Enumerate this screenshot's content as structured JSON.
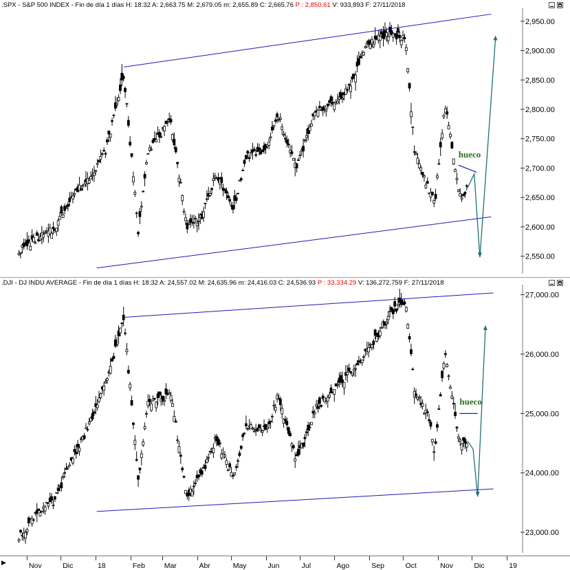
{
  "panels": [
    {
      "id": "spx",
      "header": {
        "symbol": ".SPX - S&P 500 INDEX - Fin de día 1 días",
        "h": "H: 18:32",
        "a": "A: 2,663.75",
        "m": "M: 2,679.05",
        "mn": "m: 2,655.89",
        "c": "C: 2,665.76",
        "p": "P : 2,850.61",
        "v": "V: 933,893",
        "f": "F: 27/11/2018"
      },
      "annotation": "hueco",
      "colors": {
        "channel": "#1a1ab4",
        "projection": "#1f6f6f",
        "gap": "#1a1ab4",
        "label": "#2a6e1a",
        "candle": "#000000"
      }
    },
    {
      "id": "dji",
      "header": {
        "symbol": ".DJI - DJ INDU AVERAGE - Fin de día 1 días",
        "h": "H: 18:32",
        "a": "A: 24,557.02",
        "m": "M: 24,635.96",
        "mn": "m: 24,416.03",
        "c": "C: 24,536.93",
        "p": "P : 33,334.29",
        "v": "V: 136,272,759",
        "f": "F: 27/11/2018"
      },
      "annotation": "hueco",
      "colors": {
        "channel": "#1a1ab4",
        "projection": "#1f6f6f",
        "gap": "#1a1ab4",
        "label": "#2a6e1a",
        "candle": "#000000"
      }
    }
  ],
  "x_axis": {
    "labels": [
      "Nov",
      "Dic",
      "18",
      "Feb",
      "Mar",
      "Abr",
      "May",
      "Jun",
      "Jul",
      "Ago",
      "Sep",
      "Oct",
      "Nov",
      "Dic",
      "19"
    ]
  },
  "chart_data": [
    {
      "type": "line",
      "title": ".SPX - S&P 500 INDEX",
      "y_ticks": [
        "2,950.00",
        "2,900.00",
        "2,850.00",
        "2,800.00",
        "2,750.00",
        "2,700.00",
        "2,650.00",
        "2,600.00",
        "2,550.00"
      ],
      "ylim": [
        2525,
        2965
      ],
      "x": [
        "2017-10-25",
        "2017-11-10",
        "2017-11-25",
        "2017-12-10",
        "2017-12-25",
        "2018-01-10",
        "2018-01-26",
        "2018-02-08",
        "2018-02-16",
        "2018-03-09",
        "2018-03-23",
        "2018-04-06",
        "2018-04-18",
        "2018-05-03",
        "2018-05-15",
        "2018-06-01",
        "2018-06-12",
        "2018-06-28",
        "2018-07-16",
        "2018-08-01",
        "2018-08-15",
        "2018-08-29",
        "2018-09-20",
        "2018-10-03",
        "2018-10-11",
        "2018-10-24",
        "2018-10-29",
        "2018-11-07",
        "2018-11-20",
        "2018-11-27"
      ],
      "series": [
        {
          "values": [
            2560,
            2580,
            2595,
            2650,
            2680,
            2730,
            2860,
            2590,
            2730,
            2780,
            2600,
            2620,
            2690,
            2630,
            2720,
            2730,
            2790,
            2700,
            2800,
            2810,
            2840,
            2910,
            2930,
            2920,
            2730,
            2660,
            2640,
            2810,
            2650,
            2666
          ]
        }
      ]
    },
    {
      "type": "line",
      "title": ".DJI - DJ INDU AVERAGE",
      "y_ticks": [
        "27,000.00",
        "26,000.00",
        "25,000.00",
        "24,000.00",
        "23,000.00"
      ],
      "ylim": [
        22700,
        27100
      ],
      "x": [
        "2017-10-25",
        "2017-11-10",
        "2017-11-25",
        "2017-12-10",
        "2017-12-25",
        "2018-01-10",
        "2018-01-26",
        "2018-02-08",
        "2018-02-16",
        "2018-03-09",
        "2018-03-23",
        "2018-04-06",
        "2018-04-18",
        "2018-05-03",
        "2018-05-15",
        "2018-06-01",
        "2018-06-12",
        "2018-06-28",
        "2018-07-16",
        "2018-08-01",
        "2018-08-15",
        "2018-08-29",
        "2018-09-20",
        "2018-10-03",
        "2018-10-11",
        "2018-10-24",
        "2018-10-29",
        "2018-11-07",
        "2018-11-20",
        "2018-11-27"
      ],
      "series": [
        {
          "values": [
            22900,
            23350,
            23500,
            24200,
            24750,
            25500,
            26600,
            23900,
            25200,
            25300,
            23600,
            24000,
            24600,
            23900,
            24800,
            24700,
            25300,
            24200,
            25100,
            25400,
            25700,
            26000,
            26700,
            26900,
            25400,
            24900,
            24300,
            26100,
            24500,
            24537
          ]
        }
      ]
    }
  ]
}
